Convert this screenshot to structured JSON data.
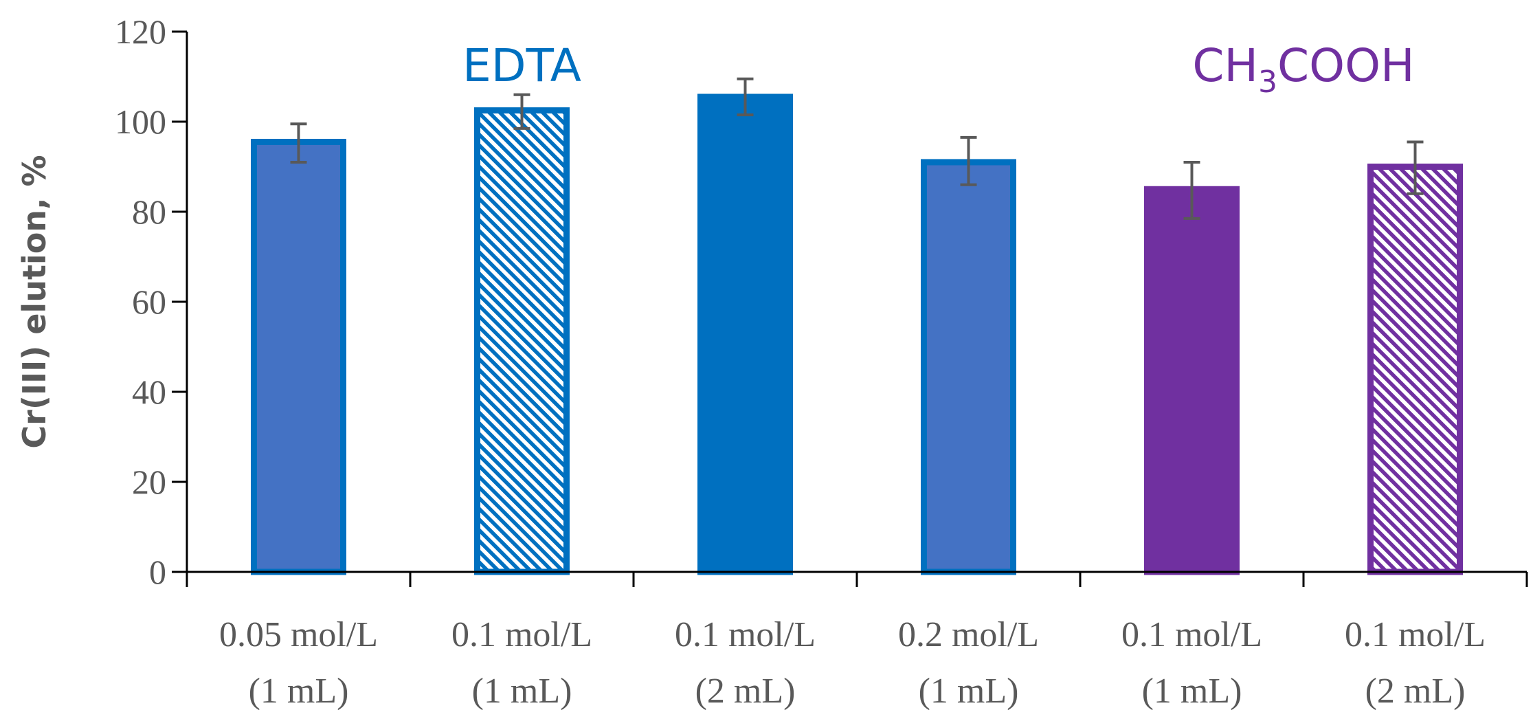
{
  "chart_data": {
    "type": "bar",
    "title": "",
    "ylabel": "Cr(III) elution, %",
    "xlabel": "",
    "ylim": [
      0,
      120
    ],
    "yticks": [
      0,
      20,
      40,
      60,
      80,
      100,
      120
    ],
    "grid": false,
    "categories": [
      {
        "line1": "0.05 mol/L",
        "line2": "(1 mL)"
      },
      {
        "line1": "0.1 mol/L",
        "line2": "(1 mL)"
      },
      {
        "line1": "0.1 mol/L",
        "line2": "(2 mL)"
      },
      {
        "line1": "0.2 mol/L",
        "line2": "(1 mL)"
      },
      {
        "line1": "0.1 mol/L",
        "line2": "(1 mL)"
      },
      {
        "line1": "0.1 mol/L",
        "line2": "(2 mL)"
      }
    ],
    "values": [
      95.5,
      102.5,
      105.5,
      91.0,
      85.0,
      90.0
    ],
    "error_low": [
      91.0,
      98.5,
      101.5,
      86.0,
      78.5,
      84.0
    ],
    "error_high": [
      99.5,
      106.0,
      109.5,
      96.5,
      91.0,
      95.5
    ],
    "bar_styles": [
      {
        "fill": "#4472C4",
        "stroke": "#0070C0",
        "pattern": "solid"
      },
      {
        "fill": "#0070C0",
        "stroke": "#0070C0",
        "pattern": "hatch"
      },
      {
        "fill": "#0070C0",
        "stroke": "#0070C0",
        "pattern": "solid"
      },
      {
        "fill": "#4472C4",
        "stroke": "#0070C0",
        "pattern": "solid"
      },
      {
        "fill": "#7030A0",
        "stroke": "#7030A0",
        "pattern": "solid"
      },
      {
        "fill": "#7030A0",
        "stroke": "#7030A0",
        "pattern": "hatch"
      }
    ],
    "group_labels": [
      {
        "text": "EDTA",
        "color": "#0070C0",
        "category_index": 1
      },
      {
        "text": "CH",
        "sub": "3",
        "tail": "COOH",
        "color": "#7030A0",
        "category_index": 4.5
      }
    ],
    "colors": {
      "axis": "#000000",
      "text": "#595959",
      "error_bar": "#595959"
    }
  }
}
